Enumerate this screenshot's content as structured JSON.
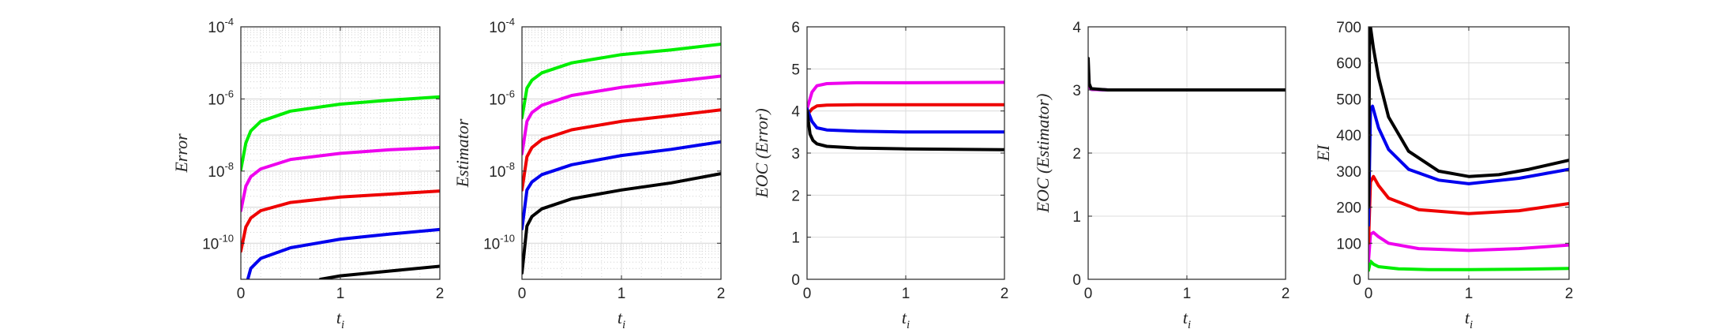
{
  "chart_data": [
    {
      "type": "line",
      "xlabel": "t_i",
      "ylabel": "Error",
      "yscale": "log",
      "xlim": [
        0,
        2
      ],
      "ylim": [
        1e-11,
        0.0001
      ],
      "xticks": [
        "0",
        "1",
        "2"
      ],
      "yticks": [
        "10-10",
        "10-8",
        "10-6",
        "10-4"
      ],
      "grid": "major+minor",
      "series": [
        {
          "color": "#00ee00",
          "points": [
            [
              0.0,
              1.1e-08
            ],
            [
              0.05,
              6e-08
            ],
            [
              0.1,
              1.3e-07
            ],
            [
              0.2,
              2.4e-07
            ],
            [
              0.5,
              4.6e-07
            ],
            [
              1.0,
              7.2e-07
            ],
            [
              1.5,
              9.3e-07
            ],
            [
              2.0,
              1.15e-06
            ]
          ]
        },
        {
          "color": "#ee00ee",
          "points": [
            [
              0.0,
              8e-10
            ],
            [
              0.05,
              3.8e-09
            ],
            [
              0.1,
              7e-09
            ],
            [
              0.2,
              1.15e-08
            ],
            [
              0.5,
              2.1e-08
            ],
            [
              1.0,
              3.1e-08
            ],
            [
              1.5,
              3.9e-08
            ],
            [
              2.0,
              4.5e-08
            ]
          ]
        },
        {
          "color": "#ee0000",
          "points": [
            [
              0.0,
              6e-11
            ],
            [
              0.05,
              2.8e-10
            ],
            [
              0.1,
              5e-10
            ],
            [
              0.2,
              8e-10
            ],
            [
              0.5,
              1.35e-09
            ],
            [
              1.0,
              1.9e-09
            ],
            [
              1.5,
              2.3e-09
            ],
            [
              2.0,
              2.8e-09
            ]
          ]
        },
        {
          "color": "#0000ee",
          "points": [
            [
              0.07,
              1e-11
            ],
            [
              0.1,
              2e-11
            ],
            [
              0.2,
              3.8e-11
            ],
            [
              0.5,
              7.5e-11
            ],
            [
              1.0,
              1.3e-10
            ],
            [
              1.5,
              1.8e-10
            ],
            [
              2.0,
              2.4e-10
            ]
          ]
        },
        {
          "color": "#000000",
          "points": [
            [
              0.8,
              1e-11
            ],
            [
              1.0,
              1.25e-11
            ],
            [
              1.5,
              1.7e-11
            ],
            [
              2.0,
              2.3e-11
            ]
          ]
        }
      ]
    },
    {
      "type": "line",
      "xlabel": "t_i",
      "ylabel": "Estimator",
      "yscale": "log",
      "xlim": [
        0,
        2
      ],
      "ylim": [
        1e-11,
        0.0001
      ],
      "xticks": [
        "0",
        "1",
        "2"
      ],
      "yticks": [
        "10-10",
        "10-8",
        "10-6",
        "10-4"
      ],
      "grid": "major+minor",
      "series": [
        {
          "color": "#00ee00",
          "points": [
            [
              0.0,
              3e-07
            ],
            [
              0.05,
              2e-06
            ],
            [
              0.1,
              3.3e-06
            ],
            [
              0.2,
              5.3e-06
            ],
            [
              0.5,
              1e-05
            ],
            [
              1.0,
              1.7e-05
            ],
            [
              1.5,
              2.3e-05
            ],
            [
              2.0,
              3.3e-05
            ]
          ]
        },
        {
          "color": "#ee00ee",
          "points": [
            [
              0.0,
              3e-08
            ],
            [
              0.05,
              2.4e-07
            ],
            [
              0.1,
              4.2e-07
            ],
            [
              0.2,
              6.7e-07
            ],
            [
              0.5,
              1.25e-06
            ],
            [
              1.0,
              2.1e-06
            ],
            [
              1.5,
              3e-06
            ],
            [
              2.0,
              4.3e-06
            ]
          ]
        },
        {
          "color": "#ee0000",
          "points": [
            [
              0.0,
              3e-09
            ],
            [
              0.05,
              2.5e-08
            ],
            [
              0.1,
              4.5e-08
            ],
            [
              0.2,
              7.5e-08
            ],
            [
              0.5,
              1.4e-07
            ],
            [
              1.0,
              2.4e-07
            ],
            [
              1.5,
              3.4e-07
            ],
            [
              2.0,
              5e-07
            ]
          ]
        },
        {
          "color": "#0000ee",
          "points": [
            [
              0.0,
              2.5e-10
            ],
            [
              0.05,
              3e-09
            ],
            [
              0.1,
              5e-09
            ],
            [
              0.2,
              8e-09
            ],
            [
              0.5,
              1.5e-08
            ],
            [
              1.0,
              2.7e-08
            ],
            [
              1.5,
              4e-08
            ],
            [
              2.0,
              6.5e-08
            ]
          ]
        },
        {
          "color": "#000000",
          "points": [
            [
              0.0,
              1.5e-11
            ],
            [
              0.05,
              3e-10
            ],
            [
              0.1,
              5.5e-10
            ],
            [
              0.2,
              9e-10
            ],
            [
              0.5,
              1.7e-09
            ],
            [
              1.0,
              3e-09
            ],
            [
              1.5,
              4.7e-09
            ],
            [
              2.0,
              8.5e-09
            ]
          ]
        }
      ]
    },
    {
      "type": "line",
      "xlabel": "t_i",
      "ylabel": "EOC (Error)",
      "xlim": [
        0,
        2
      ],
      "ylim": [
        0,
        6
      ],
      "xticks": [
        "0",
        "1",
        "2"
      ],
      "yticks": [
        "0",
        "1",
        "2",
        "3",
        "4",
        "5",
        "6"
      ],
      "grid": "major",
      "series": [
        {
          "color": "#ee00ee",
          "points": [
            [
              0.0,
              4.05
            ],
            [
              0.05,
              4.45
            ],
            [
              0.1,
              4.6
            ],
            [
              0.2,
              4.65
            ],
            [
              0.5,
              4.67
            ],
            [
              1.0,
              4.67
            ],
            [
              2.0,
              4.68
            ]
          ]
        },
        {
          "color": "#ee0000",
          "points": [
            [
              0.0,
              3.9
            ],
            [
              0.05,
              4.05
            ],
            [
              0.1,
              4.12
            ],
            [
              0.2,
              4.14
            ],
            [
              0.5,
              4.15
            ],
            [
              1.0,
              4.15
            ],
            [
              2.0,
              4.15
            ]
          ]
        },
        {
          "color": "#0000ee",
          "points": [
            [
              0.0,
              4.05
            ],
            [
              0.05,
              3.75
            ],
            [
              0.1,
              3.6
            ],
            [
              0.2,
              3.55
            ],
            [
              0.5,
              3.52
            ],
            [
              1.0,
              3.5
            ],
            [
              2.0,
              3.5
            ]
          ]
        },
        {
          "color": "#000000",
          "points": [
            [
              0.0,
              4.0
            ],
            [
              0.03,
              3.45
            ],
            [
              0.06,
              3.3
            ],
            [
              0.1,
              3.22
            ],
            [
              0.2,
              3.16
            ],
            [
              0.5,
              3.12
            ],
            [
              1.0,
              3.1
            ],
            [
              2.0,
              3.08
            ]
          ]
        }
      ]
    },
    {
      "type": "line",
      "xlabel": "t_i",
      "ylabel": "EOC (Estimator)",
      "xlim": [
        0,
        2
      ],
      "ylim": [
        0,
        4
      ],
      "xticks": [
        "0",
        "1",
        "2"
      ],
      "yticks": [
        "0",
        "1",
        "2",
        "3",
        "4"
      ],
      "grid": "major",
      "series": [
        {
          "color": "#0000ee",
          "points": [
            [
              0.0,
              3.3
            ],
            [
              0.01,
              3.05
            ],
            [
              0.03,
              3.01
            ],
            [
              0.2,
              3.0
            ],
            [
              2.0,
              3.0
            ]
          ]
        },
        {
          "color": "#ee00ee",
          "points": [
            [
              0.0,
              3.4
            ],
            [
              0.01,
              3.05
            ],
            [
              0.03,
              3.01
            ],
            [
              0.2,
              3.0
            ],
            [
              2.0,
              3.0
            ]
          ]
        },
        {
          "color": "#000000",
          "points": [
            [
              0.0,
              3.5
            ],
            [
              0.01,
              3.1
            ],
            [
              0.03,
              3.02
            ],
            [
              0.2,
              3.0
            ],
            [
              2.0,
              3.0
            ]
          ]
        }
      ]
    },
    {
      "type": "line",
      "xlabel": "t_i",
      "ylabel": "EI",
      "xlim": [
        0,
        2
      ],
      "ylim": [
        0,
        700
      ],
      "xticks": [
        "0",
        "1",
        "2"
      ],
      "yticks": [
        "0",
        "100",
        "200",
        "300",
        "400",
        "500",
        "600",
        "700"
      ],
      "grid": "major",
      "series": [
        {
          "color": "#00ee00",
          "points": [
            [
              0.0,
              25
            ],
            [
              0.02,
              50
            ],
            [
              0.05,
              42
            ],
            [
              0.1,
              35
            ],
            [
              0.3,
              29
            ],
            [
              0.6,
              27
            ],
            [
              1.0,
              27
            ],
            [
              1.5,
              28
            ],
            [
              2.0,
              30
            ]
          ]
        },
        {
          "color": "#ee00ee",
          "points": [
            [
              0.0,
              50
            ],
            [
              0.02,
              125
            ],
            [
              0.05,
              130
            ],
            [
              0.1,
              118
            ],
            [
              0.2,
              100
            ],
            [
              0.5,
              85
            ],
            [
              1.0,
              80
            ],
            [
              1.5,
              85
            ],
            [
              2.0,
              95
            ]
          ]
        },
        {
          "color": "#ee0000",
          "points": [
            [
              0.0,
              100
            ],
            [
              0.02,
              270
            ],
            [
              0.05,
              285
            ],
            [
              0.1,
              260
            ],
            [
              0.2,
              225
            ],
            [
              0.5,
              193
            ],
            [
              1.0,
              182
            ],
            [
              1.5,
              190
            ],
            [
              2.0,
              210
            ]
          ]
        },
        {
          "color": "#0000ee",
          "points": [
            [
              0.0,
              150
            ],
            [
              0.02,
              470
            ],
            [
              0.04,
              480
            ],
            [
              0.1,
              420
            ],
            [
              0.2,
              360
            ],
            [
              0.4,
              305
            ],
            [
              0.7,
              275
            ],
            [
              1.0,
              265
            ],
            [
              1.5,
              280
            ],
            [
              2.0,
              305
            ]
          ]
        },
        {
          "color": "#000000",
          "points": [
            [
              0.0,
              200
            ],
            [
              0.01,
              650
            ],
            [
              0.02,
              700
            ],
            [
              0.05,
              640
            ],
            [
              0.1,
              560
            ],
            [
              0.2,
              450
            ],
            [
              0.4,
              355
            ],
            [
              0.7,
              300
            ],
            [
              1.0,
              285
            ],
            [
              1.3,
              290
            ],
            [
              1.6,
              305
            ],
            [
              2.0,
              330
            ]
          ]
        }
      ]
    }
  ]
}
